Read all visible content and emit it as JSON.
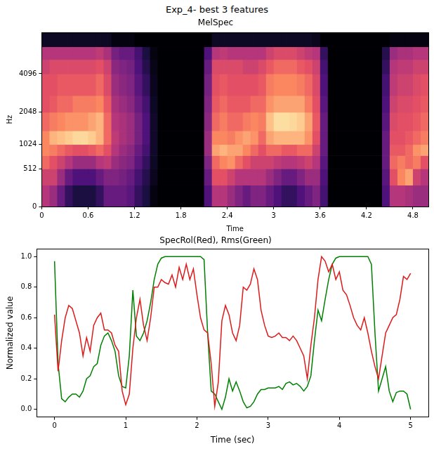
{
  "title": "Exp_4- best 3 features",
  "chart_data": [
    {
      "type": "spectrogram",
      "title": "MelSpec",
      "x_label": "Time",
      "y_label": "Hz",
      "xlim": [
        0,
        5
      ],
      "xticks": [
        0,
        0.6,
        1.2,
        1.8,
        2.4,
        3,
        3.6,
        4.2,
        4.8
      ],
      "ylim": [
        0,
        8000
      ],
      "yticks": [
        0,
        512,
        1024,
        2048,
        4096
      ],
      "grid": false,
      "color_range": [
        -80,
        0
      ],
      "time_edges": [
        0,
        0.1,
        0.2,
        0.3,
        0.4,
        0.5,
        0.6,
        0.7,
        0.8,
        0.9,
        1,
        1.1,
        1.2,
        1.3,
        1.4,
        1.5,
        1.6,
        1.7,
        1.8,
        1.9,
        2,
        2.1,
        2.2,
        2.3,
        2.4,
        2.5,
        2.6,
        2.7,
        2.8,
        2.9,
        3,
        3.1,
        3.2,
        3.3,
        3.4,
        3.5,
        3.6,
        3.7,
        3.8,
        3.9,
        4,
        4.1,
        4.2,
        4.3,
        4.4,
        4.5,
        4.6,
        4.7,
        4.8,
        4.9,
        5
      ],
      "freq_edges": [
        0,
        256,
        512,
        768,
        1024,
        1400,
        2048,
        2800,
        4096,
        5200,
        6400,
        8000
      ],
      "cells": [
        [
          -40,
          -35,
          -25,
          -20,
          -20,
          -25,
          -30,
          -30,
          -35,
          -40,
          -75
        ],
        [
          -45,
          -35,
          -30,
          -22,
          -12,
          -22,
          -28,
          -30,
          -32,
          -40,
          -75
        ],
        [
          -55,
          -45,
          -35,
          -25,
          -10,
          -20,
          -25,
          -28,
          -32,
          -40,
          -75
        ],
        [
          -65,
          -55,
          -40,
          -28,
          -8,
          -18,
          -25,
          -28,
          -32,
          -40,
          -75
        ],
        [
          -70,
          -60,
          -45,
          -30,
          -6,
          -18,
          -22,
          -28,
          -32,
          -40,
          -75
        ],
        [
          -70,
          -60,
          -45,
          -30,
          -6,
          -18,
          -22,
          -28,
          -32,
          -40,
          -75
        ],
        [
          -70,
          -60,
          -45,
          -28,
          -8,
          -15,
          -22,
          -28,
          -32,
          -40,
          -75
        ],
        [
          -65,
          -55,
          -40,
          -25,
          -12,
          -12,
          -20,
          -25,
          -30,
          -38,
          -75
        ],
        [
          -55,
          -50,
          -38,
          -30,
          -25,
          -25,
          -28,
          -32,
          -35,
          -42,
          -75
        ],
        [
          -55,
          -50,
          -45,
          -40,
          -38,
          -40,
          -42,
          -45,
          -48,
          -52,
          -78
        ],
        [
          -55,
          -52,
          -48,
          -45,
          -42,
          -42,
          -45,
          -48,
          -50,
          -55,
          -78
        ],
        [
          -58,
          -55,
          -50,
          -48,
          -45,
          -45,
          -48,
          -50,
          -52,
          -55,
          -78
        ],
        [
          -65,
          -62,
          -58,
          -55,
          -52,
          -52,
          -55,
          -58,
          -60,
          -62,
          -80
        ],
        [
          -70,
          -68,
          -65,
          -62,
          -60,
          -60,
          -62,
          -65,
          -68,
          -70,
          -80
        ],
        [
          -78,
          -76,
          -75,
          -74,
          -74,
          -74,
          -75,
          -76,
          -77,
          -78,
          -80
        ],
        [
          -80,
          -80,
          -80,
          -80,
          -80,
          -80,
          -80,
          -80,
          -80,
          -80,
          -80
        ],
        [
          -80,
          -80,
          -80,
          -80,
          -80,
          -80,
          -80,
          -80,
          -80,
          -80,
          -80
        ],
        [
          -80,
          -80,
          -80,
          -80,
          -80,
          -80,
          -80,
          -80,
          -80,
          -80,
          -80
        ],
        [
          -80,
          -80,
          -80,
          -80,
          -80,
          -80,
          -80,
          -80,
          -80,
          -80,
          -80
        ],
        [
          -80,
          -80,
          -80,
          -80,
          -80,
          -80,
          -80,
          -80,
          -80,
          -80,
          -80
        ],
        [
          -80,
          -80,
          -80,
          -80,
          -80,
          -80,
          -80,
          -80,
          -80,
          -80,
          -80
        ],
        [
          -60,
          -55,
          -50,
          -45,
          -45,
          -48,
          -50,
          -52,
          -55,
          -60,
          -80
        ],
        [
          -40,
          -30,
          -25,
          -15,
          -20,
          -25,
          -28,
          -30,
          -32,
          -40,
          -75
        ],
        [
          -40,
          -30,
          -20,
          -12,
          -20,
          -22,
          -25,
          -28,
          -32,
          -38,
          -75
        ],
        [
          -45,
          -35,
          -18,
          -15,
          -22,
          -25,
          -28,
          -30,
          -32,
          -40,
          -75
        ],
        [
          -50,
          -40,
          -25,
          -15,
          -18,
          -25,
          -28,
          -30,
          -32,
          -40,
          -75
        ],
        [
          -55,
          -40,
          -30,
          -20,
          -15,
          -22,
          -28,
          -30,
          -35,
          -40,
          -75
        ],
        [
          -50,
          -40,
          -35,
          -25,
          -18,
          -20,
          -25,
          -30,
          -35,
          -40,
          -75
        ],
        [
          -50,
          -40,
          -35,
          -30,
          -25,
          -22,
          -25,
          -28,
          -32,
          -40,
          -75
        ],
        [
          -55,
          -45,
          -35,
          -25,
          -15,
          -10,
          -18,
          -22,
          -28,
          -35,
          -75
        ],
        [
          -60,
          -50,
          -38,
          -25,
          -12,
          -5,
          -15,
          -20,
          -25,
          -32,
          -75
        ],
        [
          -65,
          -55,
          -40,
          -28,
          -12,
          -5,
          -15,
          -20,
          -25,
          -32,
          -75
        ],
        [
          -65,
          -55,
          -40,
          -28,
          -12,
          -6,
          -15,
          -20,
          -25,
          -32,
          -75
        ],
        [
          -60,
          -50,
          -38,
          -25,
          -12,
          -8,
          -15,
          -22,
          -28,
          -35,
          -75
        ],
        [
          -55,
          -45,
          -35,
          -25,
          -18,
          -15,
          -22,
          -25,
          -30,
          -38,
          -75
        ],
        [
          -50,
          -45,
          -40,
          -35,
          -30,
          -28,
          -30,
          -32,
          -35,
          -40,
          -76
        ],
        [
          -62,
          -60,
          -58,
          -55,
          -55,
          -55,
          -58,
          -60,
          -62,
          -65,
          -80
        ],
        [
          -80,
          -80,
          -80,
          -80,
          -80,
          -80,
          -80,
          -80,
          -80,
          -80,
          -80
        ],
        [
          -80,
          -80,
          -80,
          -80,
          -80,
          -80,
          -80,
          -80,
          -80,
          -80,
          -80
        ],
        [
          -80,
          -80,
          -80,
          -80,
          -80,
          -80,
          -80,
          -80,
          -80,
          -80,
          -80
        ],
        [
          -80,
          -80,
          -80,
          -80,
          -80,
          -80,
          -80,
          -80,
          -80,
          -80,
          -80
        ],
        [
          -80,
          -80,
          -80,
          -80,
          -80,
          -80,
          -80,
          -80,
          -80,
          -80,
          -80
        ],
        [
          -80,
          -80,
          -80,
          -80,
          -80,
          -80,
          -80,
          -80,
          -80,
          -80,
          -80
        ],
        [
          -80,
          -80,
          -80,
          -80,
          -80,
          -80,
          -80,
          -80,
          -80,
          -80,
          -80
        ],
        [
          -60,
          -58,
          -55,
          -55,
          -55,
          -58,
          -60,
          -62,
          -65,
          -68,
          -80
        ],
        [
          -40,
          -30,
          -25,
          -28,
          -30,
          -32,
          -35,
          -38,
          -40,
          -45,
          -78
        ],
        [
          -40,
          -20,
          -22,
          -28,
          -30,
          -30,
          -32,
          -35,
          -38,
          -42,
          -78
        ],
        [
          -42,
          -15,
          -25,
          -25,
          -28,
          -30,
          -32,
          -35,
          -38,
          -42,
          -78
        ],
        [
          -45,
          -35,
          -22,
          -18,
          -25,
          -28,
          -30,
          -32,
          -35,
          -40,
          -78
        ],
        [
          -45,
          -40,
          -30,
          -15,
          -22,
          -25,
          -28,
          -30,
          -35,
          -40,
          -78
        ]
      ]
    },
    {
      "type": "line",
      "title": "SpecRol(Red), Rms(Green)",
      "x_label": "Time (sec)",
      "y_label": "Normalized value",
      "xlim": [
        -0.25,
        5.25
      ],
      "xticks": [
        0,
        1,
        2,
        3,
        4,
        5
      ],
      "ylim": [
        -0.05,
        1.05
      ],
      "yticks": [
        {
          "value": 0,
          "label": "0.0"
        },
        0.2,
        0.4,
        0.6,
        0.8,
        {
          "value": 1,
          "label": "1.0"
        }
      ],
      "grid": false,
      "x": [
        0,
        0.05,
        0.1,
        0.15,
        0.2,
        0.25,
        0.3,
        0.35,
        0.4,
        0.45,
        0.5,
        0.55,
        0.6,
        0.65,
        0.7,
        0.75,
        0.8,
        0.85,
        0.9,
        0.95,
        1,
        1.05,
        1.1,
        1.15,
        1.2,
        1.25,
        1.3,
        1.35,
        1.4,
        1.45,
        1.5,
        1.55,
        1.6,
        1.65,
        1.7,
        1.75,
        1.8,
        1.85,
        1.9,
        1.95,
        2,
        2.05,
        2.1,
        2.15,
        2.2,
        2.25,
        2.3,
        2.35,
        2.4,
        2.45,
        2.5,
        2.55,
        2.6,
        2.65,
        2.7,
        2.75,
        2.8,
        2.85,
        2.9,
        2.95,
        3,
        3.05,
        3.1,
        3.15,
        3.2,
        3.25,
        3.3,
        3.35,
        3.4,
        3.45,
        3.5,
        3.55,
        3.6,
        3.65,
        3.7,
        3.75,
        3.8,
        3.85,
        3.9,
        3.95,
        4,
        4.05,
        4.1,
        4.15,
        4.2,
        4.25,
        4.3,
        4.35,
        4.4,
        4.45,
        4.5,
        4.55,
        4.6,
        4.65,
        4.7,
        4.75,
        4.8,
        4.85,
        4.9,
        4.95,
        5
      ],
      "series": [
        {
          "color": "#dd1a1a",
          "values": [
            0.62,
            0.25,
            0.45,
            0.6,
            0.68,
            0.66,
            0.58,
            0.5,
            0.35,
            0.47,
            0.38,
            0.55,
            0.6,
            0.63,
            0.52,
            0.52,
            0.5,
            0.42,
            0.38,
            0.12,
            0.03,
            0.1,
            0.4,
            0.6,
            0.72,
            0.55,
            0.45,
            0.6,
            0.8,
            0.8,
            0.85,
            0.83,
            0.82,
            0.88,
            0.8,
            0.93,
            0.85,
            0.95,
            0.85,
            0.92,
            0.75,
            0.6,
            0.52,
            0.5,
            0.3,
            0.02,
            0.18,
            0.58,
            0.68,
            0.62,
            0.5,
            0.45,
            0.55,
            0.8,
            0.78,
            0.82,
            0.92,
            0.85,
            0.65,
            0.55,
            0.48,
            0.47,
            0.48,
            0.5,
            0.47,
            0.47,
            0.45,
            0.48,
            0.45,
            0.4,
            0.35,
            0.2,
            0.42,
            0.6,
            0.85,
            1.0,
            0.97,
            0.9,
            0.95,
            0.85,
            0.9,
            0.78,
            0.75,
            0.68,
            0.6,
            0.55,
            0.52,
            0.6,
            0.5,
            0.38,
            0.28,
            0.2,
            0.35,
            0.5,
            0.55,
            0.6,
            0.62,
            0.72,
            0.87,
            0.85,
            0.89
          ]
        },
        {
          "color": "#008000",
          "values": [
            0.97,
            0.3,
            0.07,
            0.05,
            0.08,
            0.1,
            0.1,
            0.08,
            0.12,
            0.2,
            0.22,
            0.28,
            0.3,
            0.42,
            0.48,
            0.5,
            0.45,
            0.38,
            0.22,
            0.15,
            0.14,
            0.35,
            0.78,
            0.48,
            0.45,
            0.5,
            0.58,
            0.7,
            0.85,
            0.95,
            0.99,
            1.0,
            1.0,
            1.0,
            1.0,
            1.0,
            1.0,
            1.0,
            1.0,
            1.0,
            1.0,
            1.0,
            0.98,
            0.5,
            0.12,
            0.1,
            0.05,
            0.0,
            0.08,
            0.2,
            0.12,
            0.18,
            0.12,
            0.05,
            0.01,
            0.02,
            0.05,
            0.1,
            0.13,
            0.13,
            0.14,
            0.14,
            0.14,
            0.15,
            0.13,
            0.17,
            0.18,
            0.16,
            0.17,
            0.15,
            0.12,
            0.15,
            0.22,
            0.45,
            0.65,
            0.58,
            0.72,
            0.85,
            0.95,
            0.99,
            1.0,
            1.0,
            1.0,
            1.0,
            1.0,
            1.0,
            1.0,
            1.0,
            1.0,
            0.95,
            0.5,
            0.12,
            0.2,
            0.28,
            0.12,
            0.05,
            0.11,
            0.12,
            0.12,
            0.1,
            0.0
          ]
        }
      ]
    }
  ]
}
